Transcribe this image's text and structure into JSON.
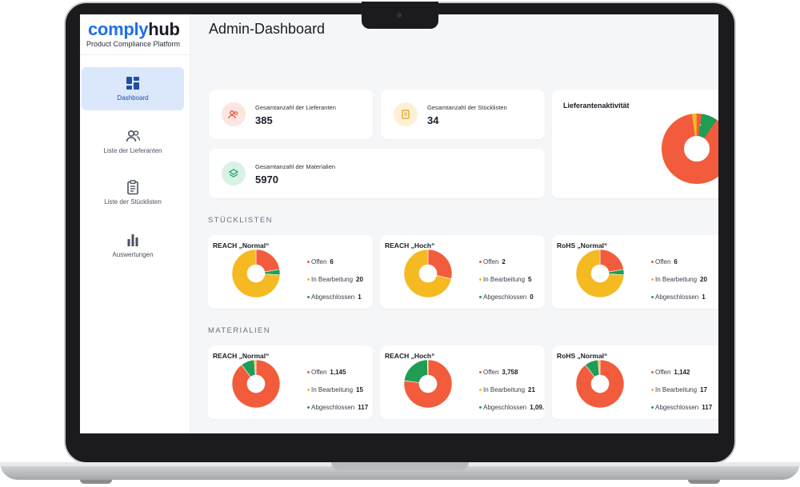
{
  "app": {
    "brand_part1": "comply",
    "brand_part2": "hub",
    "tagline": "Product Compliance Platform"
  },
  "sidebar": {
    "items": [
      {
        "label": "Dashboard",
        "icon": "dashboard-icon",
        "active": true
      },
      {
        "label": "Liste der Lieferanten",
        "icon": "users-icon",
        "active": false
      },
      {
        "label": "Liste der Stücklisten",
        "icon": "clipboard-icon",
        "active": false
      },
      {
        "label": "Auswertungen",
        "icon": "bar-chart-icon",
        "active": false
      }
    ]
  },
  "header": {
    "title": "Admin-Dashboard"
  },
  "kpis": [
    {
      "label": "Gesamtanzahl der Lieferanten",
      "value": "385",
      "icon": "suppliers-icon",
      "color": "#e5533d",
      "bg": "#fde6e1"
    },
    {
      "label": "Gesamtanzahl der Stücklisten",
      "value": "34",
      "icon": "document-icon",
      "color": "#e0a51b",
      "bg": "#fdf0d6"
    },
    {
      "label": "Gesamtanzahl der Materialien",
      "value": "5970",
      "icon": "layers-icon",
      "color": "#1e9e6a",
      "bg": "#d9f2e6"
    }
  ],
  "activity": {
    "title": "Lieferantenaktivität"
  },
  "sections": {
    "bom": "STÜCKLISTEN",
    "materials": "MATERIALIEN"
  },
  "legend_labels": {
    "open": "Offen",
    "in_progress": "In Bearbeitung",
    "closed": "Abgeschlossen"
  },
  "colors": {
    "open": "#f25c3c",
    "in_progress": "#f5b921",
    "closed": "#1f9d55",
    "accent": "#1f6feb"
  },
  "bom_cards": [
    {
      "title": "REACH „Normal“",
      "open": "6",
      "in_progress": "20",
      "closed": "1"
    },
    {
      "title": "REACH „Hoch“",
      "open": "2",
      "in_progress": "5",
      "closed": "0"
    },
    {
      "title": "RoHS „Normal“",
      "open": "6",
      "in_progress": "20",
      "closed": "1"
    }
  ],
  "material_cards": [
    {
      "title": "REACH „Normal“",
      "open": "1,145",
      "in_progress": "15",
      "closed": "117"
    },
    {
      "title": "REACH „Hoch“",
      "open": "3,758",
      "in_progress": "21",
      "closed": "1,09."
    },
    {
      "title": "RoHS „Normal“",
      "open": "1,142",
      "in_progress": "17",
      "closed": "117"
    }
  ],
  "chart_data": [
    {
      "type": "pie",
      "title": "Lieferantenaktivität",
      "categories": [],
      "values": [],
      "note": ""
    },
    {
      "type": "pie",
      "title": "REACH „Normal“",
      "categories": [
        "Offen",
        "In Bearbeitung",
        "Abgeschlossen"
      ],
      "values": [
        6,
        20,
        1
      ]
    },
    {
      "type": "pie",
      "title": "REACH „Hoch“",
      "categories": [
        "Offen",
        "In Bearbeitung",
        "Abgeschlossen"
      ],
      "values": [
        2,
        5,
        0
      ]
    },
    {
      "type": "pie",
      "title": "RoHS „Normal“",
      "categories": [
        "Offen",
        "In Bearbeitung",
        "Abgeschlossen"
      ],
      "values": [
        6,
        20,
        1
      ]
    },
    {
      "type": "pie",
      "title": "REACH „Normal“",
      "categories": [
        "Offen",
        "In Bearbeitung",
        "Abgeschlossen"
      ],
      "values": [
        1145,
        15,
        117
      ]
    },
    {
      "type": "pie",
      "title": "REACH „Hoch“",
      "categories": [
        "Offen",
        "In Bearbeitung",
        "Abgeschlossen"
      ],
      "values": [
        3758,
        21,
        1090
      ]
    },
    {
      "type": "pie",
      "title": "RoHS „Normal“",
      "categories": [
        "Offen",
        "In Bearbeitung",
        "Abgeschlossen"
      ],
      "values": [
        1142,
        17,
        117
      ]
    }
  ]
}
